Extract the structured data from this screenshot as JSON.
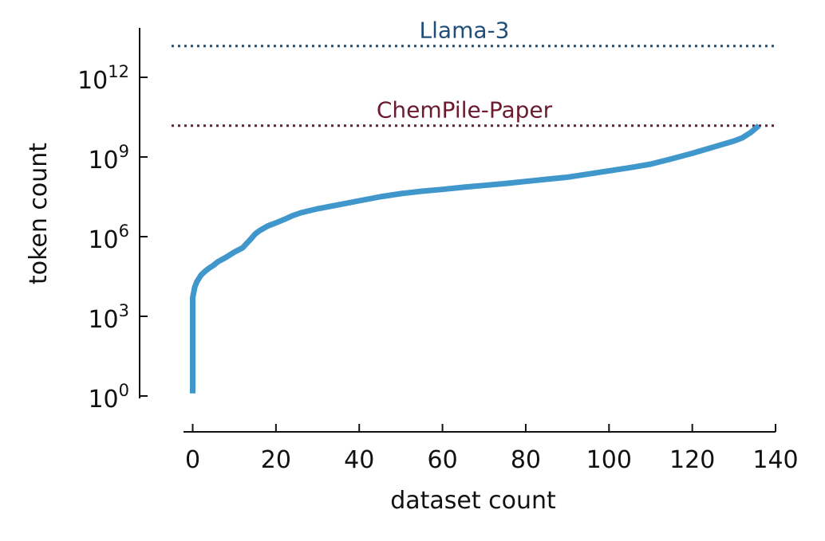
{
  "chart_data": {
    "type": "line",
    "title": "",
    "xlabel": "dataset count",
    "ylabel": "token count",
    "xlim": [
      -5,
      140
    ],
    "ylim": [
      0,
      14
    ],
    "yscale": "log10",
    "grid": false,
    "x_ticks": [
      {
        "value": 0,
        "label": "0"
      },
      {
        "value": 20,
        "label": "20"
      },
      {
        "value": 40,
        "label": "40"
      },
      {
        "value": 60,
        "label": "60"
      },
      {
        "value": 80,
        "label": "80"
      },
      {
        "value": 100,
        "label": "100"
      },
      {
        "value": 120,
        "label": "120"
      },
      {
        "value": 140,
        "label": "140"
      }
    ],
    "y_ticks": [
      {
        "value": 0,
        "base": "10",
        "exp": "0"
      },
      {
        "value": 3,
        "base": "10",
        "exp": "3"
      },
      {
        "value": 6,
        "base": "10",
        "exp": "6"
      },
      {
        "value": 9,
        "base": "10",
        "exp": "9"
      },
      {
        "value": 12,
        "base": "10",
        "exp": "12"
      }
    ],
    "series": [
      {
        "color": "#3f97cb",
        "x": [
          0,
          0,
          0.5,
          1,
          2,
          3,
          4,
          5,
          6,
          8,
          10,
          12,
          13,
          14,
          15,
          16,
          18,
          20,
          22,
          24,
          26,
          30,
          35,
          40,
          45,
          50,
          55,
          60,
          65,
          70,
          75,
          80,
          85,
          90,
          95,
          100,
          105,
          110,
          115,
          120,
          125,
          130,
          132,
          134,
          136
        ],
        "y": [
          0.1,
          3.7,
          4.1,
          4.3,
          4.55,
          4.7,
          4.82,
          4.92,
          5.05,
          5.22,
          5.42,
          5.58,
          5.75,
          5.92,
          6.1,
          6.22,
          6.4,
          6.52,
          6.65,
          6.79,
          6.9,
          7.05,
          7.2,
          7.35,
          7.5,
          7.62,
          7.71,
          7.78,
          7.86,
          7.93,
          8.0,
          8.08,
          8.16,
          8.24,
          8.36,
          8.48,
          8.6,
          8.73,
          8.93,
          9.14,
          9.37,
          9.6,
          9.72,
          9.92,
          10.18
        ]
      }
    ],
    "reference_lines": [
      {
        "label": "Llama-3",
        "value": 13.18,
        "color": "#1f4e79"
      },
      {
        "label": "ChemPile-Paper",
        "value": 10.18,
        "color": "#6b1a30"
      }
    ]
  }
}
